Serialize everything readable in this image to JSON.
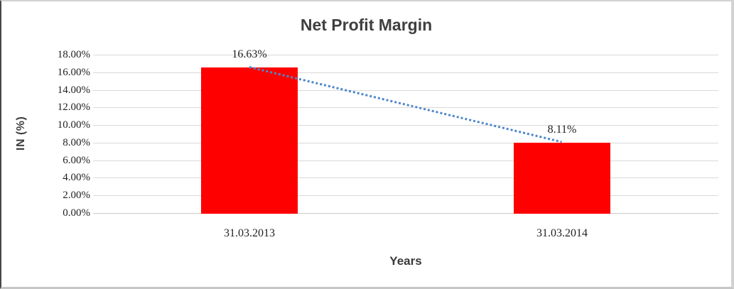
{
  "chart_data": {
    "type": "bar",
    "title": "Net Profit Margin",
    "categories": [
      "31.03.2013",
      "31.03.2014"
    ],
    "values": [
      16.63,
      8.11
    ],
    "data_labels": [
      "16.63%",
      "8.11%"
    ],
    "xlabel": "Years",
    "ylabel": "IN (%)",
    "ylim": [
      0,
      18
    ],
    "ytick_step": 2,
    "ytick_labels": [
      "0.00%",
      "2.00%",
      "4.00%",
      "6.00%",
      "8.00%",
      "10.00%",
      "12.00%",
      "14.00%",
      "16.00%",
      "18.00%"
    ],
    "grid": true,
    "legend": "none",
    "bar_color": "#fe0000",
    "gridline_color": "#d9d9d9",
    "axis_line_color": "#c9c9c9",
    "trendline": {
      "type": "linear",
      "style": "dotted",
      "color": "#4e87c9",
      "points": [
        16.63,
        8.11
      ]
    }
  }
}
